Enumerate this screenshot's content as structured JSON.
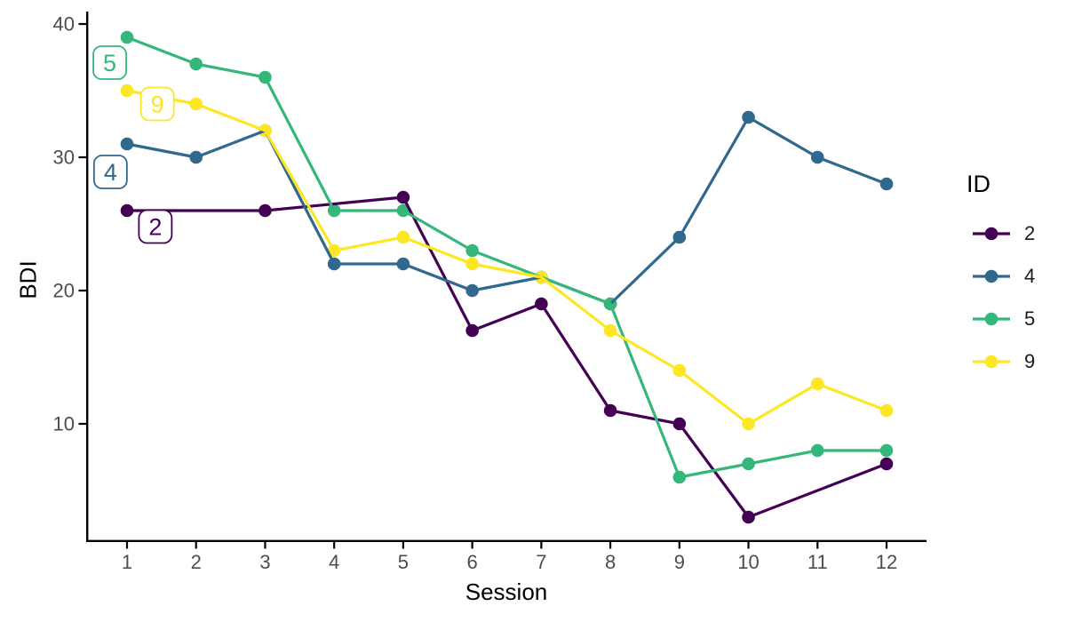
{
  "chart_data": {
    "type": "line",
    "title": "",
    "xlabel": "Session",
    "ylabel": "BDI",
    "legend_title": "ID",
    "legend_position": "right",
    "grid": false,
    "x": [
      1,
      2,
      3,
      4,
      5,
      6,
      7,
      8,
      9,
      10,
      11,
      12
    ],
    "xticks": [
      1,
      2,
      3,
      4,
      5,
      6,
      7,
      8,
      9,
      10,
      11,
      12
    ],
    "yticks": [
      10,
      20,
      30,
      40
    ],
    "xlim": [
      0.45,
      12.55
    ],
    "ylim": [
      1.2,
      40.9
    ],
    "axis_color": "#000000",
    "tick_text_color": "#4d4d4d",
    "series": [
      {
        "name": "2",
        "color": "#440154",
        "values": [
          26,
          null,
          26,
          null,
          27,
          17,
          19,
          11,
          10,
          3,
          null,
          7
        ]
      },
      {
        "name": "4",
        "color": "#31688E",
        "values": [
          31,
          30,
          32,
          22,
          22,
          20,
          21,
          19,
          24,
          33,
          30,
          28
        ]
      },
      {
        "name": "5",
        "color": "#35B779",
        "values": [
          39,
          37,
          36,
          26,
          26,
          23,
          21,
          19,
          6,
          7,
          8,
          8
        ]
      },
      {
        "name": "9",
        "color": "#FDE725",
        "values": [
          35,
          34,
          32,
          23,
          24,
          22,
          21,
          17,
          14,
          10,
          13,
          11
        ]
      }
    ],
    "annotations": [
      {
        "text": "5",
        "color": "#35B779",
        "x": 0.75,
        "y": 37.1
      },
      {
        "text": "9",
        "color": "#FDE725",
        "x": 1.44,
        "y": 34.0
      },
      {
        "text": "4",
        "color": "#31688E",
        "x": 0.76,
        "y": 28.9
      },
      {
        "text": "2",
        "color": "#440154",
        "x": 1.41,
        "y": 24.8
      }
    ]
  }
}
